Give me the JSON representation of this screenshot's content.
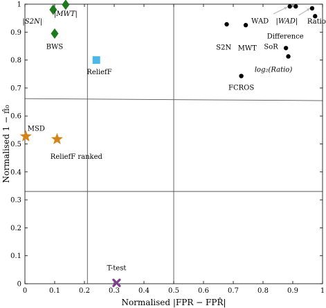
{
  "chart_data": {
    "type": "scatter",
    "title": "",
    "xlabel": "Normalised |FPR − FPR̂|",
    "ylabel": "Normalised 1 − π̂₀",
    "xlim": [
      0,
      1
    ],
    "ylim": [
      0,
      1
    ],
    "x_ticks": [
      0,
      0.1,
      0.2,
      0.3,
      0.4,
      0.5,
      0.6,
      0.7,
      0.8,
      0.9,
      1
    ],
    "x_tick_labels": [
      "0",
      "0.1",
      "0.2",
      "0.3",
      "0.4",
      "0.5",
      "0.6",
      "0.7",
      "0.8",
      "0.9",
      "1"
    ],
    "y_ticks": [
      0,
      0.1,
      0.2,
      0.3,
      0.4,
      0.5,
      0.6,
      0.7,
      0.8,
      0.9,
      1
    ],
    "y_tick_labels": [
      "0",
      "0.1",
      "0.2",
      "0.3",
      "0.4",
      "0.5",
      "0.6",
      "0.7",
      "0.8",
      "0.9",
      "1"
    ],
    "grid": false,
    "reference_lines": [
      {
        "from": [
          0.21,
          0
        ],
        "to": [
          0.21,
          1
        ]
      },
      {
        "from": [
          0.5,
          0
        ],
        "to": [
          0.5,
          1
        ]
      },
      {
        "from": [
          0,
          0.662
        ],
        "to": [
          1,
          0.655
        ]
      },
      {
        "from": [
          0,
          0.33
        ],
        "to": [
          1,
          0.33
        ]
      }
    ],
    "points": [
      {
        "label": "|S2N|",
        "x": 0.095,
        "y": 0.98,
        "marker": "diamond",
        "color": "#1b7a1b",
        "label_dx": -0.07,
        "label_dy": -0.05
      },
      {
        "label": "|MWT|",
        "x": 0.137,
        "y": 0.998,
        "marker": "diamond",
        "color": "#1b7a1b",
        "label_dx": 0.0,
        "label_dy": -0.04
      },
      {
        "label": "BWS",
        "x": 0.1,
        "y": 0.895,
        "marker": "diamond",
        "color": "#1b7a1b",
        "label_dx": 0.0,
        "label_dy": -0.055
      },
      {
        "label": "ReliefF",
        "x": 0.24,
        "y": 0.8,
        "marker": "square",
        "color": "#4cb8e8",
        "label_dx": 0.01,
        "label_dy": -0.05
      },
      {
        "label": "MSD",
        "x": 0.003,
        "y": 0.527,
        "marker": "star",
        "color": "#d4851a",
        "label_dx": 0.035,
        "label_dy": 0.02
      },
      {
        "label": "ReliefF ranked",
        "x": 0.108,
        "y": 0.517,
        "marker": "star",
        "color": "#d4851a",
        "label_dx": 0.065,
        "label_dy": -0.07
      },
      {
        "label": "T-test",
        "x": 0.308,
        "y": 0.003,
        "marker": "cross",
        "color": "#7b3f8c",
        "label_dx": 0.0,
        "label_dy": 0.045
      },
      {
        "label": "S2N",
        "x": 0.678,
        "y": 0.928,
        "marker": "dot",
        "color": "#000000",
        "label_dx": -0.01,
        "label_dy": -0.09
      },
      {
        "label": "MWT",
        "x": 0.742,
        "y": 0.925,
        "marker": "dot",
        "color": "#000000",
        "label_dx": 0.005,
        "label_dy": -0.09
      },
      {
        "label": "FCROS",
        "x": 0.727,
        "y": 0.743,
        "marker": "dot",
        "color": "#000000",
        "label_dx": 0.0,
        "label_dy": -0.05
      },
      {
        "label": "WAD",
        "x": 0.89,
        "y": 0.992,
        "marker": "dot",
        "color": "#000000",
        "label_dx": -0.1,
        "label_dy": -0.06
      },
      {
        "label": "|WAD|",
        "x": 0.91,
        "y": 0.992,
        "marker": "dot",
        "color": "#000000",
        "label_dx": -0.03,
        "label_dy": -0.06
      },
      {
        "label": "Ratio",
        "x": 0.965,
        "y": 0.985,
        "marker": "dot",
        "color": "#000000",
        "label_dx": 0.015,
        "label_dy": -0.055
      },
      {
        "label": "Difference",
        "x": 0.975,
        "y": 0.957,
        "marker": "dot",
        "color": "#000000",
        "label_dx": -0.1,
        "label_dy": -0.08
      },
      {
        "label": "SoR",
        "x": 0.877,
        "y": 0.843,
        "marker": "dot",
        "color": "#000000",
        "label_dx": -0.05,
        "label_dy": -0.003
      },
      {
        "label": "log₂(Ratio)",
        "x": 0.885,
        "y": 0.813,
        "marker": "dot",
        "color": "#000000",
        "label_dx": -0.05,
        "label_dy": -0.055
      }
    ]
  }
}
